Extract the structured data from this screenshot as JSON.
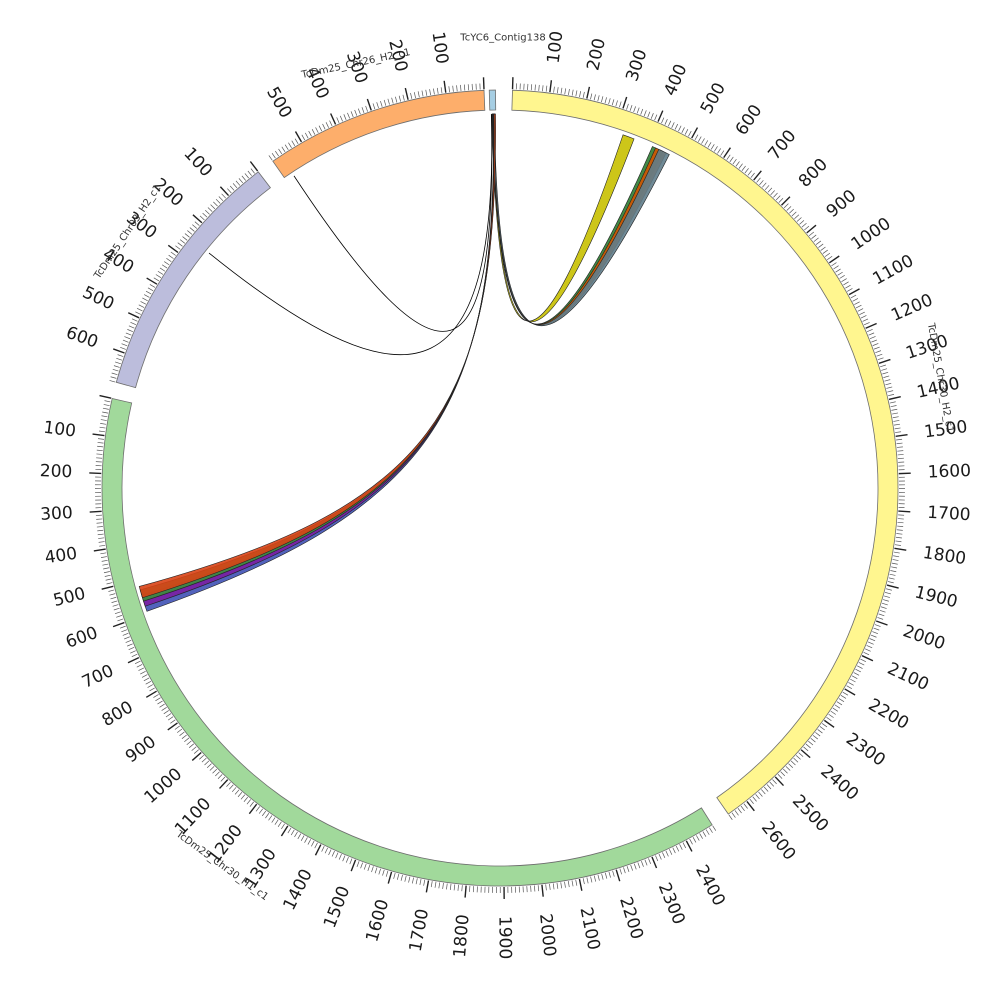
{
  "chart_data": {
    "type": "circos",
    "segments": [
      {
        "name": "TcYC6_Contig138",
        "length": 20,
        "color": "#a6cee3",
        "ticks": []
      },
      {
        "name": "TcDm25_Chr30_H2_c1",
        "length": 2660,
        "color": "#fff68f",
        "ticks": [
          100,
          200,
          300,
          400,
          500,
          600,
          700,
          800,
          900,
          1000,
          1100,
          1200,
          1300,
          1400,
          1500,
          1600,
          1700,
          1800,
          1900,
          2000,
          2100,
          2200,
          2300,
          2400,
          2500,
          2600
        ]
      },
      {
        "name": "TcDm25_Chr30_H1_c1",
        "length": 2480,
        "color": "#a1d99b",
        "reversed": true,
        "ticks": [
          100,
          200,
          300,
          400,
          500,
          600,
          700,
          800,
          900,
          1000,
          1100,
          1200,
          1300,
          1400,
          1500,
          1600,
          1700,
          1800,
          1900,
          2000,
          2100,
          2200,
          2300,
          2400
        ]
      },
      {
        "name": "TcDm25_Chr03_H2_c1",
        "length": 680,
        "color": "#bcbddc",
        "reversed": true,
        "ticks": [
          100,
          200,
          300,
          400,
          500,
          600
        ]
      },
      {
        "name": "TcDm25_Chr26_H2_c1",
        "length": 590,
        "color": "#fdae6b",
        "reversed": true,
        "ticks": [
          100,
          200,
          300,
          400,
          500
        ]
      }
    ],
    "links": [
      {
        "from": "TcYC6_Contig138",
        "to": "TcDm25_Chr26_H2_c1",
        "to_pos": 565,
        "color": "#000000"
      },
      {
        "from": "TcYC6_Contig138",
        "to": "TcDm25_Chr03_H2_c1",
        "to_pos": 250,
        "color": "#000000"
      },
      {
        "from": "TcYC6_Contig138",
        "to": "TcDm25_Chr30_H2_c1",
        "to_pos": 340,
        "color": "#c8c000"
      },
      {
        "from": "TcYC6_Contig138",
        "to": "TcDm25_Chr30_H2_c1",
        "to_pos": 430,
        "color": "#2e7d32"
      },
      {
        "from": "TcYC6_Contig138",
        "to": "TcDm25_Chr30_H2_c1",
        "to_pos": 440,
        "color": "#d35400"
      },
      {
        "from": "TcYC6_Contig138",
        "to": "TcDm25_Chr30_H2_c1",
        "to_pos": 450,
        "color": "#607d8b"
      },
      {
        "from": "TcYC6_Contig138",
        "to": "TcDm25_Chr30_H1_c1",
        "to_pos": 575,
        "color": "#3f51b5"
      },
      {
        "from": "TcYC6_Contig138",
        "to": "TcDm25_Chr30_H1_c1",
        "to_pos": 560,
        "color": "#7b1fa2"
      },
      {
        "from": "TcYC6_Contig138",
        "to": "TcDm25_Chr30_H1_c1",
        "to_pos": 545,
        "color": "#388e3c"
      },
      {
        "from": "TcYC6_Contig138",
        "to": "TcDm25_Chr30_H1_c1",
        "to_pos": 535,
        "color": "#d84315"
      }
    ]
  }
}
